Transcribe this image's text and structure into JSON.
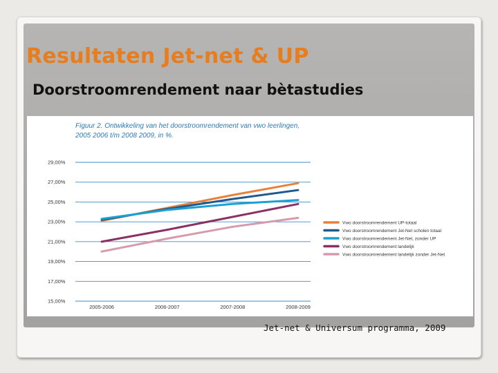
{
  "slide": {
    "title": "Resultaten Jet-net & UP",
    "subtitle": "Doorstroomrendement naar bètastudies",
    "footer": "Jet-net & Universum programma, 2009"
  },
  "chart_data": {
    "type": "line",
    "title": "Figuur 2. Ontwikkeling van het doorstroomrendement van vwo leerlingen, 2005 2006 t/m 2008 2009, in %.",
    "title_lines": [
      "Figuur 2. Ontwikkeling van het doorstroomrendement van vwo leerlingen,",
      "2005 2006 t/m 2008 2009, in %."
    ],
    "xlabel": "",
    "ylabel": "",
    "categories": [
      "2005-2006",
      "2006-2007",
      "2007-2008",
      "2008-2009"
    ],
    "ylim": [
      15,
      29
    ],
    "yticks": [
      15,
      17,
      19,
      21,
      23,
      25,
      27,
      29
    ],
    "ytick_labels": [
      "15,00%",
      "17,00%",
      "19,00%",
      "21,00%",
      "23,00%",
      "25,00%",
      "27,00%",
      "29,00%"
    ],
    "grid": "horizontal",
    "legend_position": "right",
    "series": [
      {
        "name": "Vwo doorstroomrendement UP-totaal",
        "color": "#e8803a",
        "values": [
          23.1,
          24.4,
          25.7,
          26.9
        ]
      },
      {
        "name": "Vwo doorstroomrendement Jet-Net scholen totaal",
        "color": "#1f5a8c",
        "values": [
          23.2,
          24.3,
          25.3,
          26.2
        ]
      },
      {
        "name": "Vwo doorstroomrendement Jet-Net, zonder UP",
        "color": "#1aa0d3",
        "values": [
          23.3,
          24.2,
          24.8,
          25.2
        ]
      },
      {
        "name": "Vwo doorstroomrendement landelijk",
        "color": "#8c2f63",
        "values": [
          21.0,
          22.2,
          23.5,
          24.8
        ]
      },
      {
        "name": "Vwo doorstroomrendement landelijk zonder Jet-Net",
        "color": "#d59aab",
        "values": [
          20.0,
          21.3,
          22.5,
          23.4
        ]
      }
    ]
  }
}
